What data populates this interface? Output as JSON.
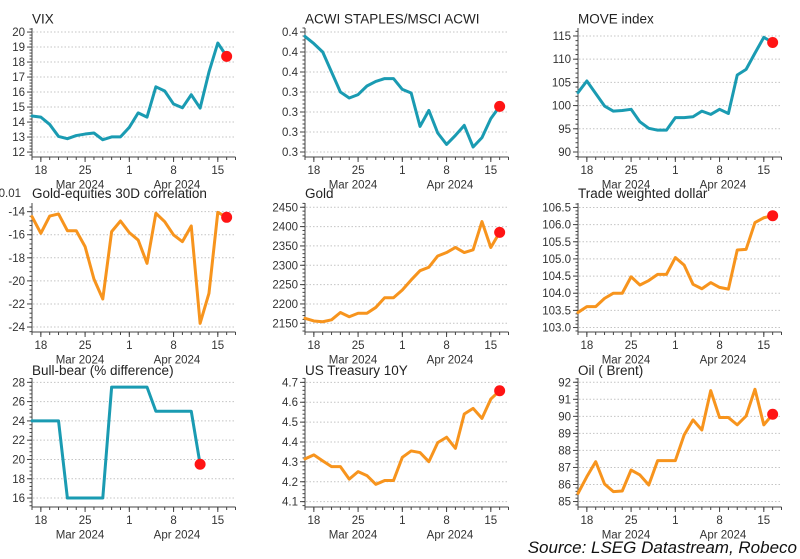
{
  "footer": {
    "source": "Source: LSEG Datastream, Robeco"
  },
  "chart_data": [
    {
      "type": "line",
      "title": "VIX",
      "color": "#1a9bb2",
      "marker_color": "#ff1414",
      "highlight": "last",
      "xlim": [
        "2024-03-15",
        "2024-04-17"
      ],
      "xticks": [
        "2024-03-18",
        "2024-03-25",
        "2024-04-01",
        "2024-04-08",
        "2024-04-15"
      ],
      "xtick_labels": [
        "18",
        "25",
        "1",
        "8",
        "15"
      ],
      "month_labels": [
        "Mar 2024",
        "Apr 2024"
      ],
      "ylim": [
        11.67,
        20.27
      ],
      "yticks": [
        20,
        19,
        18,
        17,
        16,
        15,
        14,
        13,
        12
      ],
      "ytick_labels": [
        "20",
        "19",
        "18",
        "17",
        "16",
        "15",
        "14",
        "13",
        "12"
      ],
      "grid": true,
      "x": [
        "2024-03-15",
        "2024-03-18",
        "2024-03-19",
        "2024-03-20",
        "2024-03-21",
        "2024-03-22",
        "2024-03-25",
        "2024-03-26",
        "2024-03-27",
        "2024-03-28",
        "2024-03-29",
        "2024-04-01",
        "2024-04-02",
        "2024-04-03",
        "2024-04-04",
        "2024-04-05",
        "2024-04-08",
        "2024-04-09",
        "2024-04-10",
        "2024-04-11",
        "2024-04-12",
        "2024-04-15",
        "2024-04-16"
      ],
      "values": [
        14.4,
        14.33,
        13.84,
        13.04,
        12.89,
        13.1,
        13.2,
        13.27,
        12.82,
        13.01,
        13.01,
        13.65,
        14.61,
        14.33,
        16.35,
        16.07,
        15.2,
        14.95,
        15.82,
        14.93,
        17.33,
        19.27,
        18.38
      ]
    },
    {
      "type": "line",
      "title": "ACWI STAPLES/MSCI ACWI",
      "color": "#1a9bb2",
      "marker_color": "#ff1414",
      "highlight": "last",
      "xlim": [
        "2024-03-15",
        "2024-04-17"
      ],
      "xticks": [
        "2024-03-18",
        "2024-03-25",
        "2024-04-01",
        "2024-04-08",
        "2024-04-15"
      ],
      "xtick_labels": [
        "18",
        "25",
        "1",
        "8",
        "15"
      ],
      "month_labels": [
        "Mar 2024",
        "Apr 2024"
      ],
      "ylim": [
        0.3075,
        0.372
      ],
      "yticks": [
        0.37,
        0.36,
        0.35,
        0.34,
        0.33,
        0.32,
        0.31
      ],
      "ytick_labels": [
        "0.4",
        "0.4",
        "0.4",
        "0.3",
        "0.3",
        "0.3",
        "0.3"
      ],
      "grid": true,
      "x": [
        "2024-03-15",
        "2024-03-18",
        "2024-03-19",
        "2024-03-20",
        "2024-03-21",
        "2024-03-22",
        "2024-03-25",
        "2024-03-26",
        "2024-03-27",
        "2024-03-28",
        "2024-03-29",
        "2024-04-01",
        "2024-04-02",
        "2024-04-03",
        "2024-04-04",
        "2024-04-05",
        "2024-04-08",
        "2024-04-09",
        "2024-04-10",
        "2024-04-11",
        "2024-04-12",
        "2024-04-15",
        "2024-04-16"
      ],
      "values": [
        0.3678,
        0.3642,
        0.36,
        0.35,
        0.34,
        0.337,
        0.3387,
        0.343,
        0.3453,
        0.3467,
        0.3467,
        0.3413,
        0.3395,
        0.3228,
        0.3308,
        0.3195,
        0.3138,
        0.3183,
        0.3233,
        0.3125,
        0.3172,
        0.3267,
        0.3328
      ]
    },
    {
      "type": "line",
      "title": "MOVE index",
      "color": "#1a9bb2",
      "marker_color": "#ff1414",
      "highlight": "last",
      "xlim": [
        "2024-03-15",
        "2024-04-17"
      ],
      "xticks": [
        "2024-03-18",
        "2024-03-25",
        "2024-04-01",
        "2024-04-08",
        "2024-04-15"
      ],
      "xtick_labels": [
        "18",
        "25",
        "1",
        "8",
        "15"
      ],
      "month_labels": [
        "Mar 2024",
        "Apr 2024"
      ],
      "ylim": [
        88.92,
        116.72
      ],
      "yticks": [
        115,
        110,
        105,
        100,
        95,
        90
      ],
      "ytick_labels": [
        "115",
        "110",
        "105",
        "100",
        "95",
        "90"
      ],
      "grid": true,
      "x": [
        "2024-03-15",
        "2024-03-18",
        "2024-03-19",
        "2024-03-20",
        "2024-03-21",
        "2024-03-22",
        "2024-03-25",
        "2024-03-26",
        "2024-03-27",
        "2024-03-28",
        "2024-03-29",
        "2024-04-01",
        "2024-04-02",
        "2024-04-03",
        "2024-04-04",
        "2024-04-05",
        "2024-04-08",
        "2024-04-09",
        "2024-04-10",
        "2024-04-11",
        "2024-04-12",
        "2024-04-15",
        "2024-04-16"
      ],
      "values": [
        102.8,
        105.3,
        102.6,
        99.9,
        98.8,
        98.95,
        99.2,
        96.5,
        95.1,
        94.7,
        94.7,
        97.4,
        97.4,
        97.6,
        98.8,
        98.1,
        99.2,
        98.3,
        106.6,
        107.8,
        111.3,
        114.7,
        113.6
      ]
    },
    {
      "type": "line",
      "title": "Gold-equities 30D correlation",
      "y_scale_label": "0.01",
      "color": "#f7941d",
      "marker_color": "#ff1414",
      "highlight": "last",
      "xlim": [
        "2024-03-15",
        "2024-04-17"
      ],
      "xticks": [
        "2024-03-18",
        "2024-03-25",
        "2024-04-01",
        "2024-04-08",
        "2024-04-15"
      ],
      "xtick_labels": [
        "18",
        "25",
        "1",
        "8",
        "15"
      ],
      "month_labels": [
        "Mar 2024",
        "Apr 2024"
      ],
      "ylim": [
        -24.43,
        -13.25
      ],
      "yticks": [
        -14,
        -16,
        -18,
        -20,
        -22,
        -24
      ],
      "ytick_labels": [
        "-14",
        "-16",
        "-18",
        "-20",
        "-22",
        "-24"
      ],
      "grid": true,
      "x": [
        "2024-03-15",
        "2024-03-18",
        "2024-03-19",
        "2024-03-20",
        "2024-03-21",
        "2024-03-22",
        "2024-03-25",
        "2024-03-26",
        "2024-03-27",
        "2024-03-28",
        "2024-03-29",
        "2024-04-01",
        "2024-04-02",
        "2024-04-03",
        "2024-04-04",
        "2024-04-05",
        "2024-04-08",
        "2024-04-09",
        "2024-04-10",
        "2024-04-11",
        "2024-04-12",
        "2024-04-15",
        "2024-04-16"
      ],
      "values": [
        -14.43,
        -15.88,
        -14.38,
        -14.2,
        -15.65,
        -15.65,
        -17.03,
        -19.84,
        -21.57,
        -15.73,
        -14.81,
        -15.82,
        -16.46,
        -18.48,
        -14.14,
        -14.87,
        -16.02,
        -16.6,
        -15.24,
        -23.68,
        -21.08,
        -14.06,
        -14.49
      ]
    },
    {
      "type": "line",
      "title": "Gold",
      "color": "#f7941d",
      "marker_color": "#ff1414",
      "highlight": "last",
      "xlim": [
        "2024-03-15",
        "2024-04-17"
      ],
      "xticks": [
        "2024-03-18",
        "2024-03-25",
        "2024-04-01",
        "2024-04-08",
        "2024-04-15"
      ],
      "xtick_labels": [
        "18",
        "25",
        "1",
        "8",
        "15"
      ],
      "month_labels": [
        "Mar 2024",
        "Apr 2024"
      ],
      "ylim": [
        2127.5,
        2461
      ],
      "yticks": [
        2450,
        2400,
        2350,
        2300,
        2250,
        2200,
        2150
      ],
      "ytick_labels": [
        "2450",
        "2400",
        "2350",
        "2300",
        "2250",
        "2200",
        "2150"
      ],
      "grid": true,
      "x": [
        "2024-03-15",
        "2024-03-18",
        "2024-03-19",
        "2024-03-20",
        "2024-03-21",
        "2024-03-22",
        "2024-03-25",
        "2024-03-26",
        "2024-03-27",
        "2024-03-28",
        "2024-03-29",
        "2024-04-01",
        "2024-04-02",
        "2024-04-03",
        "2024-04-04",
        "2024-04-05",
        "2024-04-08",
        "2024-04-09",
        "2024-04-10",
        "2024-04-11",
        "2024-04-12",
        "2024-04-15",
        "2024-04-16"
      ],
      "values": [
        2163,
        2156,
        2154,
        2159,
        2178,
        2167,
        2176,
        2176,
        2191,
        2216,
        2216,
        2236,
        2262,
        2286,
        2295,
        2324,
        2333,
        2346,
        2333,
        2340,
        2413,
        2346,
        2385
      ]
    },
    {
      "type": "line",
      "title": "Trade weighted dollar",
      "color": "#f7941d",
      "marker_color": "#ff1414",
      "highlight": "last",
      "xlim": [
        "2024-03-15",
        "2024-04-17"
      ],
      "xticks": [
        "2024-03-18",
        "2024-03-25",
        "2024-04-01",
        "2024-04-08",
        "2024-04-15"
      ],
      "xtick_labels": [
        "18",
        "25",
        "1",
        "8",
        "15"
      ],
      "month_labels": [
        "Mar 2024",
        "Apr 2024"
      ],
      "ylim": [
        102.87,
        106.63
      ],
      "yticks": [
        106.5,
        106.0,
        105.5,
        105.0,
        104.5,
        104.0,
        103.5,
        103.0
      ],
      "ytick_labels": [
        "106.5",
        "106.0",
        "105.5",
        "105.0",
        "104.5",
        "104.0",
        "103.5",
        "103.0"
      ],
      "grid": true,
      "x": [
        "2024-03-15",
        "2024-03-18",
        "2024-03-19",
        "2024-03-20",
        "2024-03-21",
        "2024-03-22",
        "2024-03-25",
        "2024-03-26",
        "2024-03-27",
        "2024-03-28",
        "2024-03-29",
        "2024-04-01",
        "2024-04-02",
        "2024-04-03",
        "2024-04-04",
        "2024-04-05",
        "2024-04-08",
        "2024-04-09",
        "2024-04-10",
        "2024-04-11",
        "2024-04-12",
        "2024-04-15",
        "2024-04-16"
      ],
      "values": [
        103.44,
        103.61,
        103.61,
        103.85,
        104.0,
        104.0,
        104.48,
        104.24,
        104.37,
        104.55,
        104.55,
        105.04,
        104.82,
        104.26,
        104.13,
        104.31,
        104.17,
        104.12,
        105.26,
        105.28,
        106.06,
        106.2,
        106.26
      ]
    },
    {
      "type": "line",
      "title": "Bull-bear (% difference)",
      "color": "#1a9bb2",
      "marker_color": "#ff1414",
      "highlight": "last",
      "xlim": [
        "2024-03-15",
        "2024-04-17"
      ],
      "xticks": [
        "2024-03-18",
        "2024-03-25",
        "2024-04-01",
        "2024-04-08",
        "2024-04-15"
      ],
      "xtick_labels": [
        "18",
        "25",
        "1",
        "8",
        "15"
      ],
      "month_labels": [
        "Mar 2024",
        "Apr 2024"
      ],
      "ylim": [
        15.07,
        28.45
      ],
      "yticks": [
        28,
        26,
        24,
        22,
        20,
        18,
        16
      ],
      "ytick_labels": [
        "28",
        "26",
        "24",
        "22",
        "20",
        "18",
        "16"
      ],
      "grid": true,
      "x": [
        "2024-03-15",
        "2024-03-18",
        "2024-03-19",
        "2024-03-20",
        "2024-03-21",
        "2024-03-22",
        "2024-03-25",
        "2024-03-26",
        "2024-03-27",
        "2024-03-28",
        "2024-03-29",
        "2024-04-01",
        "2024-04-02",
        "2024-04-03",
        "2024-04-04",
        "2024-04-05",
        "2024-04-08",
        "2024-04-09",
        "2024-04-10",
        "2024-04-11"
      ],
      "values": [
        24,
        24,
        24,
        24,
        16,
        16,
        16,
        16,
        16,
        27.5,
        27.5,
        27.5,
        27.5,
        27.5,
        25,
        25,
        25,
        25,
        25,
        19.5
      ]
    },
    {
      "type": "line",
      "title": "US Treasury 10Y",
      "color": "#f7941d",
      "marker_color": "#ff1414",
      "highlight": "last",
      "xlim": [
        "2024-03-15",
        "2024-04-17"
      ],
      "xticks": [
        "2024-03-18",
        "2024-03-25",
        "2024-04-01",
        "2024-04-08",
        "2024-04-15"
      ],
      "xtick_labels": [
        "18",
        "25",
        "1",
        "8",
        "15"
      ],
      "month_labels": [
        "Mar 2024",
        "Apr 2024"
      ],
      "ylim": [
        4.073,
        4.722
      ],
      "yticks": [
        4.7,
        4.6,
        4.5,
        4.4,
        4.3,
        4.2,
        4.1
      ],
      "ytick_labels": [
        "4.7",
        "4.6",
        "4.5",
        "4.4",
        "4.3",
        "4.2",
        "4.1"
      ],
      "grid": true,
      "x": [
        "2024-03-15",
        "2024-03-18",
        "2024-03-19",
        "2024-03-20",
        "2024-03-21",
        "2024-03-22",
        "2024-03-25",
        "2024-03-26",
        "2024-03-27",
        "2024-03-28",
        "2024-03-29",
        "2024-04-01",
        "2024-04-02",
        "2024-04-03",
        "2024-04-04",
        "2024-04-05",
        "2024-04-08",
        "2024-04-09",
        "2024-04-10",
        "2024-04-11",
        "2024-04-12",
        "2024-04-15",
        "2024-04-16"
      ],
      "values": [
        4.315,
        4.335,
        4.305,
        4.276,
        4.276,
        4.213,
        4.251,
        4.231,
        4.187,
        4.206,
        4.206,
        4.323,
        4.355,
        4.347,
        4.301,
        4.397,
        4.424,
        4.368,
        4.541,
        4.569,
        4.519,
        4.616,
        4.658
      ]
    },
    {
      "type": "line",
      "title": "Oil ( Brent)",
      "color": "#f7941d",
      "marker_color": "#ff1414",
      "highlight": "last",
      "xlim": [
        "2024-03-15",
        "2024-04-17"
      ],
      "xticks": [
        "2024-03-18",
        "2024-03-25",
        "2024-04-01",
        "2024-04-08",
        "2024-04-15"
      ],
      "xtick_labels": [
        "18",
        "25",
        "1",
        "8",
        "15"
      ],
      "month_labels": [
        "Mar 2024",
        "Apr 2024"
      ],
      "ylim": [
        84.68,
        92.25
      ],
      "yticks": [
        92,
        91,
        90,
        89,
        88,
        87,
        86,
        85
      ],
      "ytick_labels": [
        "92",
        "91",
        "90",
        "89",
        "88",
        "87",
        "86",
        "85"
      ],
      "grid": true,
      "x": [
        "2024-03-15",
        "2024-03-18",
        "2024-03-19",
        "2024-03-20",
        "2024-03-21",
        "2024-03-22",
        "2024-03-25",
        "2024-03-26",
        "2024-03-27",
        "2024-03-28",
        "2024-03-29",
        "2024-04-01",
        "2024-04-02",
        "2024-04-03",
        "2024-04-04",
        "2024-04-05",
        "2024-04-08",
        "2024-04-09",
        "2024-04-10",
        "2024-04-11",
        "2024-04-12",
        "2024-04-15",
        "2024-04-16"
      ],
      "values": [
        85.48,
        86.46,
        87.34,
        86.03,
        85.58,
        85.62,
        86.85,
        86.56,
        85.97,
        87.4,
        87.4,
        87.4,
        88.91,
        89.79,
        89.2,
        91.51,
        89.93,
        89.93,
        89.5,
        90.02,
        91.59,
        89.5,
        90.12
      ]
    }
  ]
}
